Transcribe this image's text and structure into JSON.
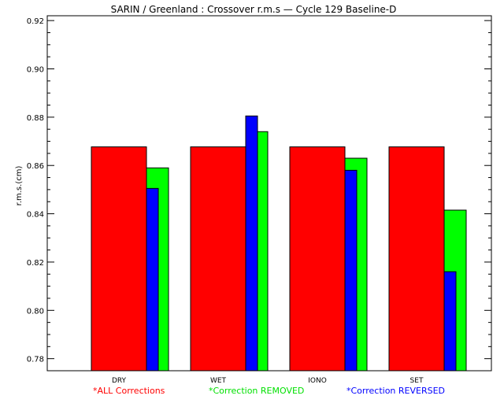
{
  "chart_data": {
    "type": "bar",
    "title": "SARIN / Greenland : Crossover r.m.s — Cycle 129 Baseline-D",
    "ylabel": "r.m.s.(cm)",
    "xlabel": "",
    "ylim": [
      0.775,
      0.922
    ],
    "yticks": [
      "0.78",
      "0.80",
      "0.82",
      "0.84",
      "0.86",
      "0.88",
      "0.90",
      "0.92"
    ],
    "categories": [
      "DRY",
      "WET",
      "IONO",
      "SET"
    ],
    "series": [
      {
        "name": "*ALL Corrections",
        "color": "#ff0000",
        "values": [
          0.8677,
          0.8677,
          0.8677,
          0.8677
        ]
      },
      {
        "name": "*Correction REMOVED",
        "color": "#00ff00",
        "values": [
          0.859,
          0.874,
          0.863,
          0.8415
        ]
      },
      {
        "name": "*Correction REVERSED",
        "color": "#0000ff",
        "values": [
          0.8505,
          0.8805,
          0.858,
          0.816
        ]
      }
    ],
    "grid": false,
    "legend_placement": "bottom"
  }
}
